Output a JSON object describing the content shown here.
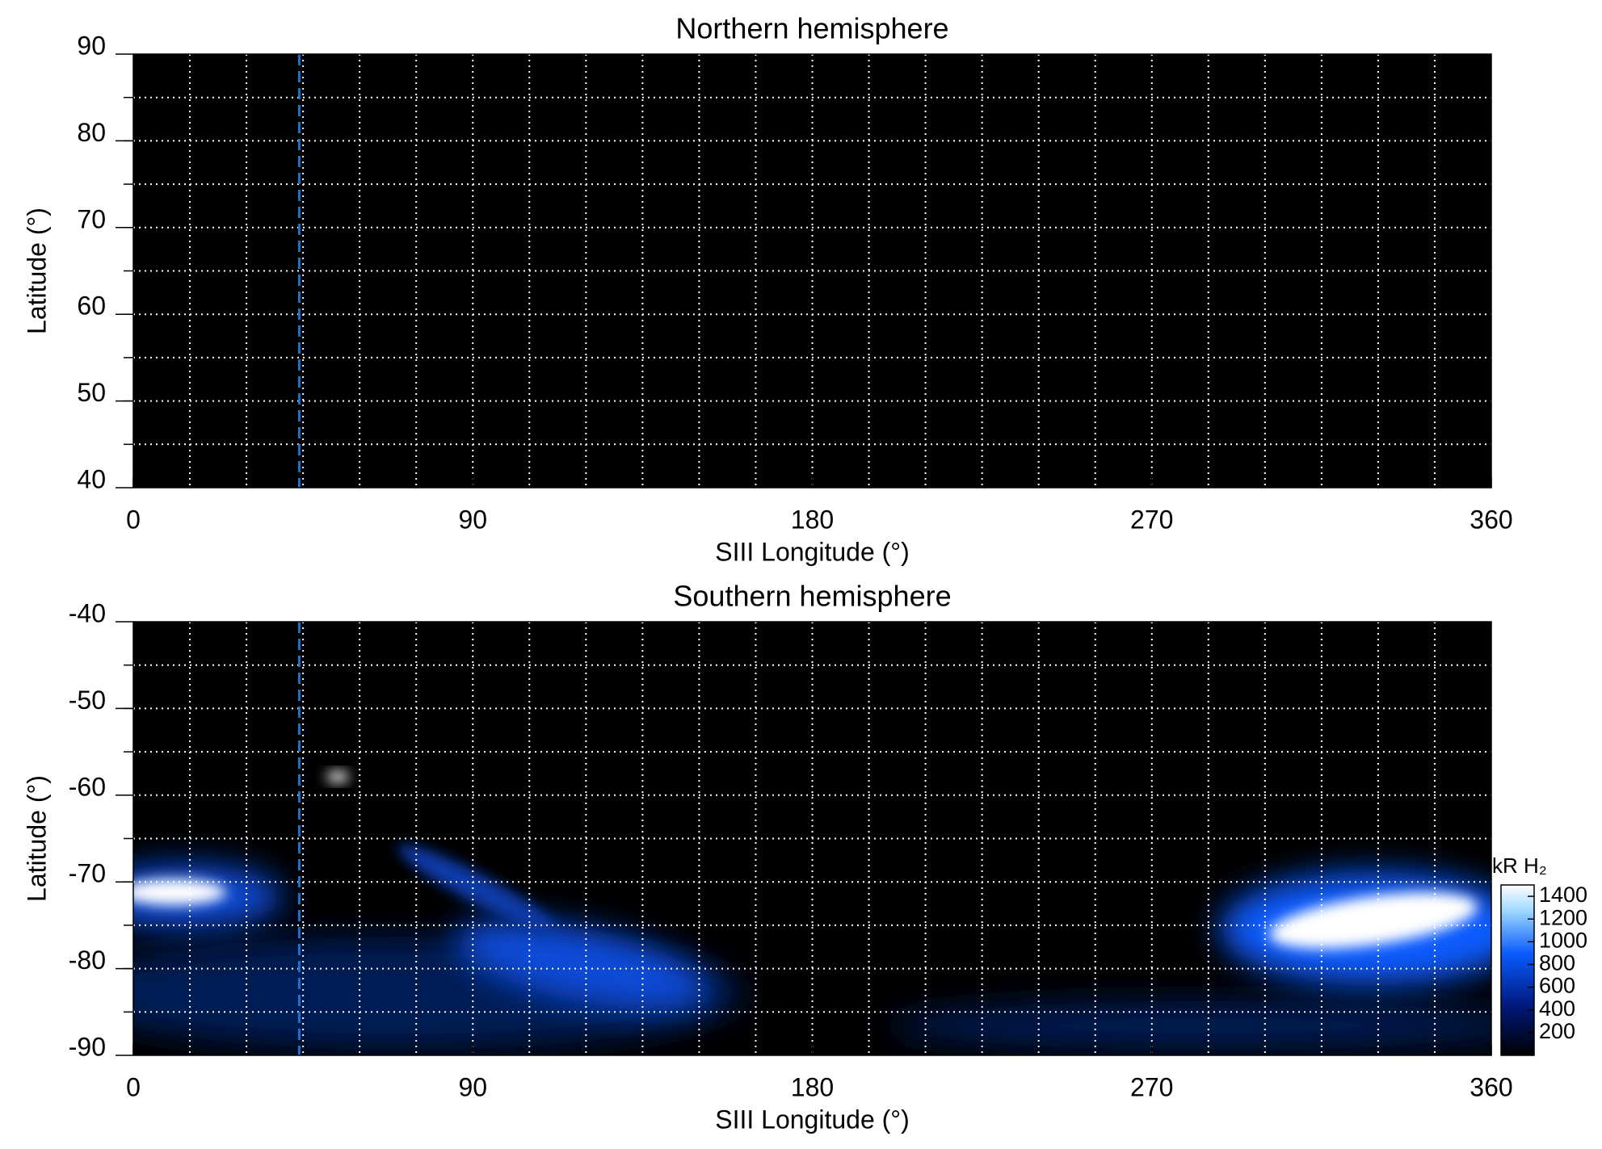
{
  "chart_data": [
    {
      "type": "heatmap",
      "title": "Northern hemisphere",
      "x_label": "SIII Longitude (°)",
      "y_label": "Latitude (°)",
      "xlim": [
        0,
        360
      ],
      "xticks": [
        0,
        90,
        180,
        270,
        360
      ],
      "ylim": [
        40,
        90
      ],
      "yticks": [
        40,
        50,
        60,
        70,
        80,
        90
      ],
      "xgrid": [
        15,
        30,
        45,
        60,
        75,
        90,
        105,
        120,
        135,
        150,
        165,
        180,
        195,
        210,
        225,
        240,
        255,
        270,
        285,
        300,
        315,
        330,
        345
      ],
      "ygrid": [
        45,
        50,
        55,
        60,
        65,
        70,
        75,
        80,
        85
      ],
      "marker_x": 44,
      "marker_color": "#1f6fd0",
      "background": "#000000"
    },
    {
      "type": "heatmap",
      "title": "Southern hemisphere",
      "x_label": "SIII Longitude (°)",
      "y_label": "Latitude (°)",
      "xlim": [
        0,
        360
      ],
      "xticks": [
        0,
        90,
        180,
        270,
        360
      ],
      "ylim": [
        -90,
        -40
      ],
      "yticks": [
        -90,
        -80,
        -70,
        -60,
        -50,
        -40
      ],
      "xgrid": [
        15,
        30,
        45,
        60,
        75,
        90,
        105,
        120,
        135,
        150,
        165,
        180,
        195,
        210,
        225,
        240,
        255,
        270,
        285,
        300,
        315,
        330,
        345
      ],
      "ygrid": [
        -85,
        -80,
        -75,
        -70,
        -65,
        -60,
        -55,
        -50,
        -45
      ],
      "marker_x": 44,
      "marker_color": "#1f6fd0",
      "background": "#000000",
      "colorbar": {
        "label": "kR H₂",
        "lim": [
          0,
          1500
        ],
        "ticks": [
          200,
          400,
          600,
          800,
          1000,
          1200,
          1400
        ]
      }
    }
  ]
}
